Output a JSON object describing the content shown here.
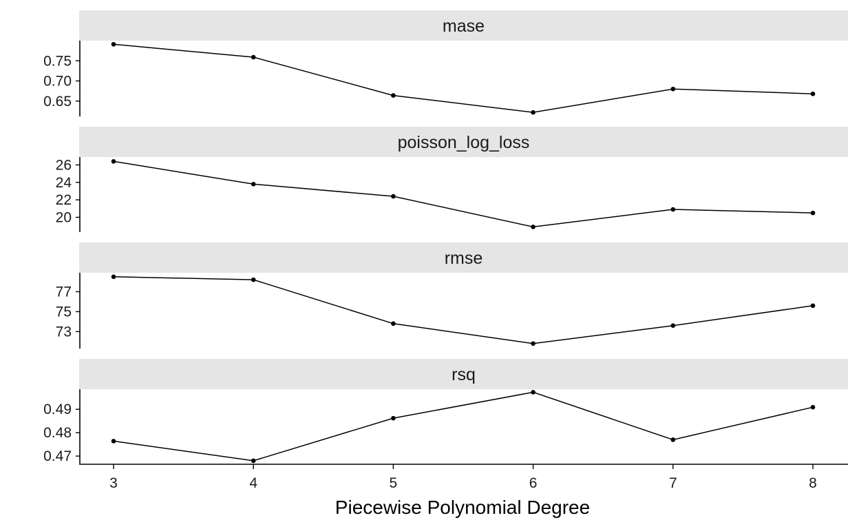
{
  "chart_data": {
    "type": "line",
    "xlabel": "Piecewise Polynomial Degree",
    "x": [
      3,
      4,
      5,
      6,
      7,
      8
    ],
    "x_ticks": [
      "3",
      "4",
      "5",
      "6",
      "7",
      "8"
    ],
    "x_range": [
      2.75,
      8.25
    ],
    "grid": false,
    "colors": {
      "strip_fill": "#e5e5e5",
      "line": "#000000",
      "axis": "#000000"
    },
    "panels": [
      {
        "name": "mase",
        "values": [
          0.791,
          0.759,
          0.664,
          0.622,
          0.68,
          0.668
        ],
        "y_ticks": [
          0.65,
          0.7,
          0.75
        ],
        "y_tick_labels": [
          "0.65",
          "0.70",
          "0.75"
        ],
        "ylim": [
          0.612,
          0.8
        ]
      },
      {
        "name": "poisson_log_loss",
        "values": [
          26.4,
          23.8,
          22.4,
          18.9,
          20.9,
          20.5
        ],
        "y_ticks": [
          20,
          22,
          24,
          26
        ],
        "y_tick_labels": [
          "20",
          "22",
          "24",
          "26"
        ],
        "ylim": [
          18.3,
          26.9
        ]
      },
      {
        "name": "rmse",
        "values": [
          78.5,
          78.2,
          73.8,
          71.8,
          73.6,
          75.6
        ],
        "y_ticks": [
          73,
          75,
          77
        ],
        "y_tick_labels": [
          "73",
          "75",
          "77"
        ],
        "ylim": [
          71.3,
          78.9
        ]
      },
      {
        "name": "rsq",
        "values": [
          0.4764,
          0.468,
          0.4862,
          0.4973,
          0.477,
          0.4909
        ],
        "y_ticks": [
          0.47,
          0.48,
          0.49
        ],
        "y_tick_labels": [
          "0.47",
          "0.48",
          "0.49"
        ],
        "ylim": [
          0.4668,
          0.4986
        ]
      }
    ]
  }
}
